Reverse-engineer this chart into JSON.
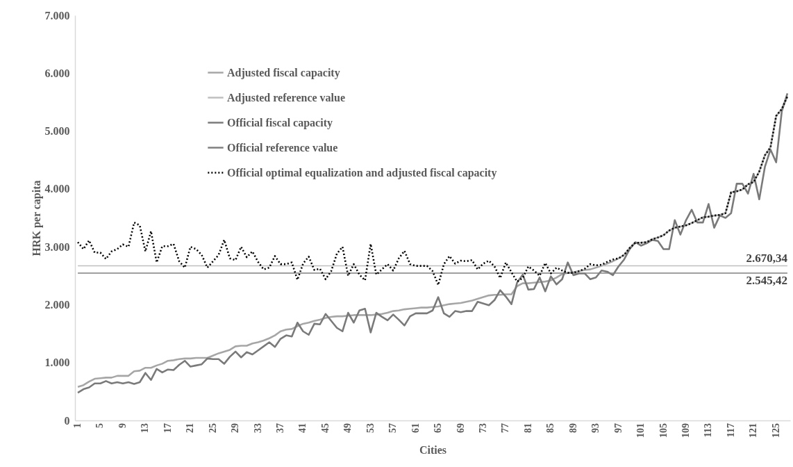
{
  "chart_data": {
    "type": "line",
    "xlabel": "Cities",
    "ylabel": "HRK per capita",
    "x": [
      1,
      2,
      3,
      4,
      5,
      6,
      7,
      8,
      9,
      10,
      11,
      12,
      13,
      14,
      15,
      16,
      17,
      18,
      19,
      20,
      21,
      22,
      23,
      24,
      25,
      26,
      27,
      28,
      29,
      30,
      31,
      32,
      33,
      34,
      35,
      36,
      37,
      38,
      39,
      40,
      41,
      42,
      43,
      44,
      45,
      46,
      47,
      48,
      49,
      50,
      51,
      52,
      53,
      54,
      55,
      56,
      57,
      58,
      59,
      60,
      61,
      62,
      63,
      64,
      65,
      66,
      67,
      68,
      69,
      70,
      71,
      72,
      73,
      74,
      75,
      76,
      77,
      78,
      79,
      80,
      81,
      82,
      83,
      84,
      85,
      86,
      87,
      88,
      89,
      90,
      91,
      92,
      93,
      94,
      95,
      96,
      97,
      98,
      99,
      100,
      101,
      102,
      103,
      104,
      105,
      106,
      107,
      108,
      109,
      110,
      111,
      112,
      113,
      114,
      115,
      116,
      117,
      118,
      119,
      120,
      121,
      122,
      123,
      124,
      125,
      126,
      127
    ],
    "xlim": [
      0.5,
      127.5
    ],
    "xticks": [
      1,
      5,
      9,
      13,
      17,
      21,
      25,
      29,
      33,
      37,
      41,
      45,
      49,
      53,
      57,
      61,
      65,
      69,
      73,
      77,
      81,
      85,
      89,
      93,
      97,
      101,
      105,
      109,
      113,
      117,
      121,
      125
    ],
    "ylim": [
      0,
      7000
    ],
    "yticks": [
      0,
      {
        "value": 1000,
        "label": "1.000"
      },
      {
        "value": 2000,
        "label": "2.000"
      },
      {
        "value": 3000,
        "label": "3.000"
      },
      {
        "value": 4000,
        "label": "4.000"
      },
      {
        "value": 5000,
        "label": "5.000"
      },
      {
        "value": 6000,
        "label": "6.000"
      },
      {
        "value": 7000,
        "label": "7.000"
      }
    ],
    "grid": false,
    "legend": "top left",
    "marker": "none",
    "series": [
      {
        "name": "Adjusted fiscal capacity",
        "color": "#a6a6a6",
        "line_style": "solid",
        "values": [
          580,
          610,
          670,
          720,
          730,
          740,
          740,
          770,
          770,
          770,
          850,
          860,
          910,
          910,
          950,
          980,
          1030,
          1040,
          1060,
          1070,
          1070,
          1080,
          1080,
          1080,
          1120,
          1160,
          1190,
          1220,
          1280,
          1290,
          1290,
          1330,
          1350,
          1380,
          1420,
          1470,
          1540,
          1570,
          1580,
          1630,
          1670,
          1690,
          1720,
          1740,
          1770,
          1790,
          1800,
          1800,
          1810,
          1820,
          1820,
          1820,
          1820,
          1830,
          1840,
          1860,
          1890,
          1900,
          1920,
          1930,
          1940,
          1950,
          1950,
          1960,
          1970,
          1990,
          2010,
          2020,
          2030,
          2050,
          2070,
          2100,
          2130,
          2160,
          2170,
          2170,
          2180,
          2180,
          2320,
          2370,
          2370,
          2380,
          2390,
          2400,
          2420,
          2470,
          2530,
          2550,
          2560,
          2580,
          2600,
          2610,
          2640,
          2670,
          2710,
          2750,
          2800,
          2860,
          2980,
          3070,
          3070,
          3080,
          3130,
          3160,
          3200,
          3280,
          3330,
          3350,
          3370,
          3410,
          3460,
          3510,
          3520,
          3540,
          3550,
          3580,
          3940,
          3960,
          3990,
          4080,
          4120,
          4300,
          4580,
          4720,
          5260,
          5380,
          5600
        ]
      },
      {
        "name": "Adjusted reference value",
        "color": "#bfbfbf",
        "line_style": "solid",
        "values": [
          2670.34,
          2670.34,
          2670.34,
          2670.34,
          2670.34,
          2670.34,
          2670.34,
          2670.34,
          2670.34,
          2670.34,
          2670.34,
          2670.34,
          2670.34,
          2670.34,
          2670.34,
          2670.34,
          2670.34,
          2670.34,
          2670.34,
          2670.34,
          2670.34,
          2670.34,
          2670.34,
          2670.34,
          2670.34,
          2670.34,
          2670.34,
          2670.34,
          2670.34,
          2670.34,
          2670.34,
          2670.34,
          2670.34,
          2670.34,
          2670.34,
          2670.34,
          2670.34,
          2670.34,
          2670.34,
          2670.34,
          2670.34,
          2670.34,
          2670.34,
          2670.34,
          2670.34,
          2670.34,
          2670.34,
          2670.34,
          2670.34,
          2670.34,
          2670.34,
          2670.34,
          2670.34,
          2670.34,
          2670.34,
          2670.34,
          2670.34,
          2670.34,
          2670.34,
          2670.34,
          2670.34,
          2670.34,
          2670.34,
          2670.34,
          2670.34,
          2670.34,
          2670.34,
          2670.34,
          2670.34,
          2670.34,
          2670.34,
          2670.34,
          2670.34,
          2670.34,
          2670.34,
          2670.34,
          2670.34,
          2670.34,
          2670.34,
          2670.34,
          2670.34,
          2670.34,
          2670.34,
          2670.34,
          2670.34,
          2670.34,
          2670.34,
          2670.34,
          2670.34,
          2670.34,
          2670.34,
          2670.34,
          2670.34,
          2670.34,
          2670.34,
          2670.34,
          2670.34,
          2670.34,
          2670.34,
          2670.34,
          2670.34,
          2670.34,
          2670.34,
          2670.34,
          2670.34,
          2670.34,
          2670.34,
          2670.34,
          2670.34,
          2670.34,
          2670.34,
          2670.34,
          2670.34,
          2670.34,
          2670.34,
          2670.34,
          2670.34,
          2670.34,
          2670.34,
          2670.34,
          2670.34,
          2670.34,
          2670.34,
          2670.34,
          2670.34,
          2670.34,
          2670.34
        ]
      },
      {
        "name": "Official fiscal capacity",
        "color": "#7a7a7a",
        "line_style": "solid",
        "values": [
          480,
          540,
          570,
          640,
          640,
          680,
          640,
          660,
          640,
          660,
          630,
          660,
          820,
          700,
          890,
          830,
          880,
          870,
          960,
          1030,
          930,
          950,
          970,
          1070,
          1060,
          1060,
          980,
          1100,
          1190,
          1090,
          1180,
          1140,
          1210,
          1280,
          1350,
          1270,
          1410,
          1470,
          1450,
          1690,
          1540,
          1480,
          1670,
          1660,
          1840,
          1720,
          1600,
          1540,
          1860,
          1690,
          1900,
          1930,
          1520,
          1860,
          1790,
          1730,
          1830,
          1740,
          1640,
          1800,
          1850,
          1850,
          1850,
          1900,
          2130,
          1850,
          1790,
          1890,
          1870,
          1890,
          1890,
          2050,
          2020,
          1990,
          2080,
          2250,
          2140,
          2010,
          2380,
          2520,
          2260,
          2270,
          2470,
          2230,
          2490,
          2350,
          2440,
          2730,
          2510,
          2540,
          2540,
          2440,
          2470,
          2590,
          2570,
          2510,
          2660,
          2780,
          2960,
          3080,
          3020,
          3060,
          3120,
          3100,
          2960,
          2960,
          3460,
          3210,
          3460,
          3640,
          3420,
          3420,
          3740,
          3330,
          3540,
          3500,
          3580,
          4090,
          4090,
          3920,
          4260,
          3820,
          4380,
          4680,
          4460,
          5340,
          5650
        ]
      },
      {
        "name": "Official reference value",
        "color": "#7f7f7f",
        "line_style": "solid",
        "values": [
          2545.42,
          2545.42,
          2545.42,
          2545.42,
          2545.42,
          2545.42,
          2545.42,
          2545.42,
          2545.42,
          2545.42,
          2545.42,
          2545.42,
          2545.42,
          2545.42,
          2545.42,
          2545.42,
          2545.42,
          2545.42,
          2545.42,
          2545.42,
          2545.42,
          2545.42,
          2545.42,
          2545.42,
          2545.42,
          2545.42,
          2545.42,
          2545.42,
          2545.42,
          2545.42,
          2545.42,
          2545.42,
          2545.42,
          2545.42,
          2545.42,
          2545.42,
          2545.42,
          2545.42,
          2545.42,
          2545.42,
          2545.42,
          2545.42,
          2545.42,
          2545.42,
          2545.42,
          2545.42,
          2545.42,
          2545.42,
          2545.42,
          2545.42,
          2545.42,
          2545.42,
          2545.42,
          2545.42,
          2545.42,
          2545.42,
          2545.42,
          2545.42,
          2545.42,
          2545.42,
          2545.42,
          2545.42,
          2545.42,
          2545.42,
          2545.42,
          2545.42,
          2545.42,
          2545.42,
          2545.42,
          2545.42,
          2545.42,
          2545.42,
          2545.42,
          2545.42,
          2545.42,
          2545.42,
          2545.42,
          2545.42,
          2545.42,
          2545.42,
          2545.42,
          2545.42,
          2545.42,
          2545.42,
          2545.42,
          2545.42,
          2545.42,
          2545.42,
          2545.42,
          2545.42,
          2545.42,
          2545.42,
          2545.42,
          2545.42,
          2545.42,
          2545.42,
          2545.42,
          2545.42,
          2545.42,
          2545.42,
          2545.42,
          2545.42,
          2545.42,
          2545.42,
          2545.42,
          2545.42,
          2545.42,
          2545.42,
          2545.42,
          2545.42,
          2545.42,
          2545.42,
          2545.42,
          2545.42,
          2545.42,
          2545.42,
          2545.42,
          2545.42,
          2545.42,
          2545.42,
          2545.42,
          2545.42,
          2545.42,
          2545.42,
          2545.42,
          2545.42,
          2545.42
        ]
      },
      {
        "name": "Official optimal equalization and adjusted fiscal capacity",
        "color": "#000000",
        "line_style": "dotted",
        "values": [
          3080,
          2960,
          3110,
          2900,
          2900,
          2790,
          2920,
          2960,
          3040,
          3000,
          3420,
          3370,
          2920,
          3270,
          2730,
          3010,
          3010,
          3050,
          2750,
          2640,
          3000,
          2960,
          2860,
          2640,
          2750,
          2860,
          3120,
          2800,
          2770,
          3000,
          2820,
          2920,
          2740,
          2610,
          2640,
          2840,
          2700,
          2700,
          2730,
          2430,
          2710,
          2830,
          2600,
          2620,
          2440,
          2580,
          2880,
          3000,
          2500,
          2700,
          2520,
          2420,
          3050,
          2520,
          2610,
          2700,
          2590,
          2800,
          2930,
          2700,
          2670,
          2670,
          2670,
          2580,
          2340,
          2700,
          2840,
          2710,
          2760,
          2750,
          2770,
          2610,
          2710,
          2760,
          2660,
          2460,
          2730,
          2560,
          2400,
          2460,
          2660,
          2590,
          2500,
          2720,
          2540,
          2640,
          2590,
          2550,
          2550,
          2580,
          2620,
          2700,
          2680,
          2690,
          2740,
          2780,
          2800,
          2860,
          2980,
          3070,
          3070,
          3080,
          3130,
          3160,
          3200,
          3280,
          3330,
          3350,
          3370,
          3410,
          3460,
          3510,
          3520,
          3540,
          3550,
          3580,
          3940,
          3960,
          3990,
          4080,
          4120,
          4300,
          4580,
          4720,
          5260,
          5380,
          5600
        ]
      }
    ],
    "annotations": [
      {
        "text": "2.670,34",
        "x": 127,
        "y": 2670.34
      },
      {
        "text": "2.545,42",
        "x": 127,
        "y": 2545.42
      }
    ]
  }
}
